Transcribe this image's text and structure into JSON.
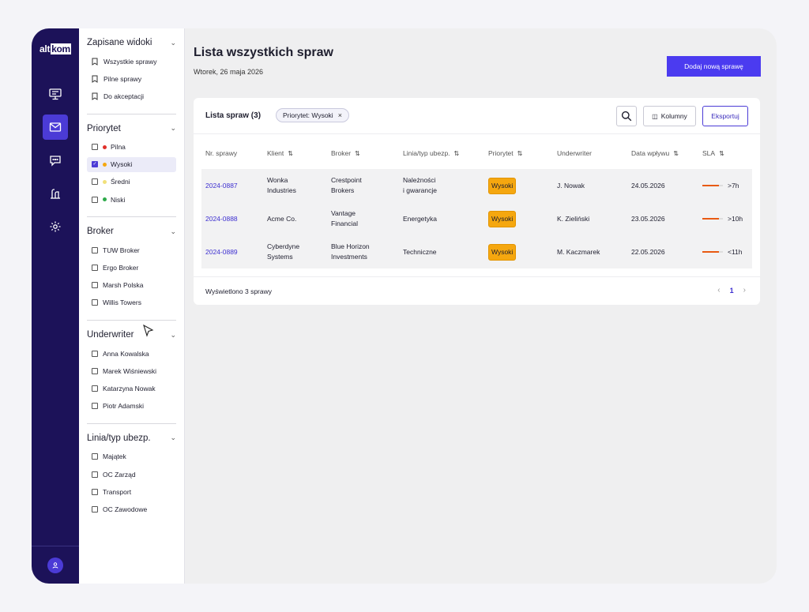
{
  "brand": {
    "logo_left": "alt",
    "logo_right": "kom"
  },
  "filters": {
    "sections": [
      {
        "title": "Zapisane widoki",
        "chevron": "⌄",
        "items": [
          "Wszystkie sprawy",
          "Pilne sprawy",
          "Do akceptacji"
        ]
      },
      {
        "title": "Priorytet",
        "chevron": "⌄",
        "items": [
          "Pilna",
          "Wysoki",
          "Średni",
          "Niski"
        ]
      },
      {
        "title": "Broker",
        "chevron": "⌄",
        "items": [
          "TUW Broker",
          "Ergo Broker",
          "Marsh Polska",
          "Willis Towers"
        ]
      },
      {
        "title": "Underwriter",
        "chevron": "⌄",
        "items": [
          "Anna Kowalska",
          "Marek Wiśniewski",
          "Katarzyna Nowak",
          "Piotr Adamski"
        ]
      },
      {
        "title": "Linia/typ ubezp.",
        "chevron": "⌄",
        "items": [
          "Majątek",
          "OC Zarząd",
          "Transport",
          "OC Zawodowe"
        ]
      }
    ],
    "priority_colors": [
      "#e0302a",
      "#f5a70f",
      "#f1e07a",
      "#2eaa4a"
    ]
  },
  "header": {
    "title": "Lista wszystkich spraw",
    "date": "Wtorek, 26 maja 2026",
    "add_button": "Dodaj nową sprawę"
  },
  "card": {
    "title": "Lista spraw (3)",
    "chip_label": "Priorytet: Wysoki",
    "chip_close": "×",
    "columns_button": "Kolumny",
    "export_button": "Eksportuj",
    "columns": [
      "Nr. sprawy",
      "Klient",
      "Broker",
      "Linia/typ ubezp.",
      "Priorytet",
      "Underwriter",
      "Data wpływu",
      "SLA"
    ],
    "sort_icon": "⇅",
    "rows": [
      {
        "id": "2024-0887",
        "client": [
          "Wonka",
          "Industries"
        ],
        "broker": [
          "Crestpoint",
          "Brokers"
        ],
        "line": [
          "Należności",
          "i gwarancje"
        ],
        "priority": "Wysoki",
        "underwriter": "J. Nowak",
        "date": "24.05.2026",
        "sla": ">7h",
        "sla_level": 0.8
      },
      {
        "id": "2024-0888",
        "client": [
          "Acme Co.",
          ""
        ],
        "broker": [
          "Vantage",
          "Financial"
        ],
        "line": [
          "Energetyka",
          ""
        ],
        "priority": "Wysoki",
        "underwriter": "K. Zieliński",
        "date": "23.05.2026",
        "sla": ">10h",
        "sla_level": 0.8
      },
      {
        "id": "2024-0889",
        "client": [
          "Cyberdyne",
          "Systems"
        ],
        "broker": [
          "Blue Horizon",
          "Investments"
        ],
        "line": [
          "Techniczne",
          ""
        ],
        "priority": "Wysoki",
        "underwriter": "M. Kaczmarek",
        "date": "22.05.2026",
        "sla": "<11h",
        "sla_level": 0.8
      }
    ],
    "footer_text": "Wyświetlono 3 sprawy",
    "page": "1",
    "prev": "‹",
    "next": "›"
  },
  "colors": {
    "accent": "#4b3bf0",
    "rail": "#1c1259",
    "badge": "#f5a70f",
    "sla": "#e85a12"
  }
}
